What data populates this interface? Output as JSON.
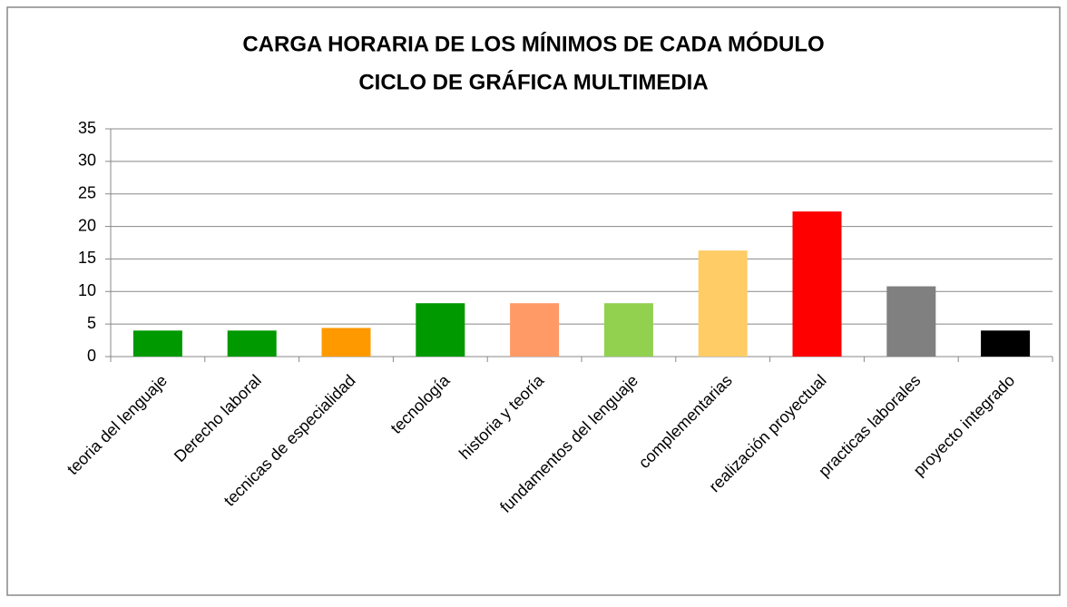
{
  "chart_data": {
    "type": "bar",
    "title": [
      "CARGA HORARIA DE LOS MÍNIMOS DE CADA MÓDULO",
      "CICLO DE GRÁFICA MULTIMEDIA"
    ],
    "categories": [
      "teoria del lenguaje",
      "Derecho laboral",
      "tecnicas de especialidad",
      "tecnología",
      "historia y teoría",
      "fundamentos del lenguaje",
      "complementarias",
      "realización proyectual",
      "practicas laborales",
      "proyecto integrado"
    ],
    "values": [
      4,
      4,
      4.4,
      8.2,
      8.2,
      8.2,
      16.3,
      22.3,
      10.8,
      4
    ],
    "colors": [
      "#009900",
      "#009900",
      "#ff9900",
      "#009900",
      "#ff9966",
      "#92d050",
      "#ffcc66",
      "#ff0000",
      "#808080",
      "#000000"
    ],
    "ylim": [
      0,
      35
    ],
    "yticks": [
      0,
      5,
      10,
      15,
      20,
      25,
      30,
      35
    ],
    "grid": true
  }
}
